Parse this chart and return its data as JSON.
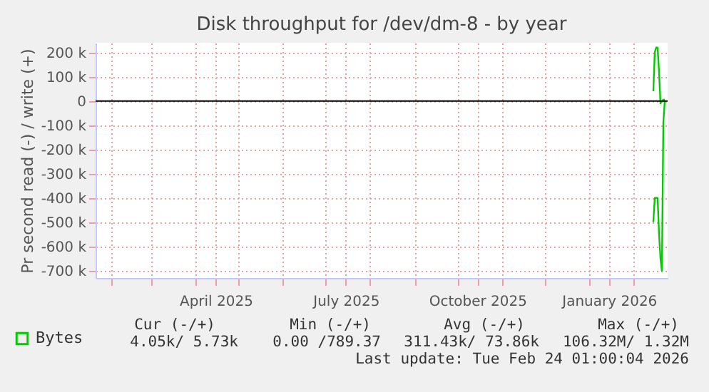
{
  "chart_data": {
    "type": "line",
    "title": "Disk throughput for /dev/dm-8 - by year",
    "ylabel": "Pr second read (-) / write (+)",
    "series": [
      {
        "name": "Bytes",
        "color": "#00cc00",
        "x": [
          "2026-02-15",
          "2026-02-16",
          "2026-02-17",
          "2026-02-18",
          "2026-02-19",
          "2026-02-20",
          "2026-02-21",
          "2026-02-22",
          "2026-02-23"
        ],
        "values": [
          40000,
          200000,
          220000,
          220000,
          120000,
          -10000,
          0,
          5000,
          5000
        ]
      },
      {
        "color": "#00cc00",
        "x": [
          "2026-02-15",
          "2026-02-16",
          "2026-02-17",
          "2026-02-18",
          "2026-02-19",
          "2026-02-20",
          "2026-02-21",
          "2026-02-22",
          "2026-02-23"
        ],
        "values": [
          -500000,
          -400000,
          -400000,
          -400000,
          -550000,
          -650000,
          -700000,
          -90000,
          0
        ]
      }
    ],
    "xlim": [
      "2025-01-21",
      "2026-02-25"
    ],
    "xticks": [
      {
        "value": "2025-02-01",
        "label": null
      },
      {
        "value": "2025-03-01",
        "label": null
      },
      {
        "value": "2025-04-01",
        "label": null
      },
      {
        "value": "2025-04-15",
        "label": "April 2025"
      },
      {
        "value": "2025-05-01",
        "label": null
      },
      {
        "value": "2025-06-01",
        "label": null
      },
      {
        "value": "2025-07-01",
        "label": null
      },
      {
        "value": "2025-07-15",
        "label": "July 2025"
      },
      {
        "value": "2025-08-01",
        "label": null
      },
      {
        "value": "2025-09-01",
        "label": null
      },
      {
        "value": "2025-10-01",
        "label": null
      },
      {
        "value": "2025-10-15",
        "label": "October 2025"
      },
      {
        "value": "2025-11-01",
        "label": null
      },
      {
        "value": "2025-12-01",
        "label": null
      },
      {
        "value": "2026-01-01",
        "label": null
      },
      {
        "value": "2026-01-15",
        "label": "January 2026"
      },
      {
        "value": "2026-02-01",
        "label": null
      }
    ],
    "ylim": [
      -730000,
      240000
    ],
    "yticks": [
      {
        "value": 200000,
        "label": "200 k"
      },
      {
        "value": 100000,
        "label": "100 k"
      },
      0,
      {
        "value": -100000,
        "label": "-100 k"
      },
      {
        "value": -200000,
        "label": "-200 k"
      },
      {
        "value": -300000,
        "label": "-300 k"
      },
      {
        "value": -400000,
        "label": "-400 k"
      },
      {
        "value": -500000,
        "label": "-500 k"
      },
      {
        "value": -600000,
        "label": "-600 k"
      },
      {
        "value": -700000,
        "label": "-700 k"
      }
    ],
    "ref_lines": [
      {
        "axis": "y",
        "value": 0,
        "color": "#000000"
      }
    ],
    "grid": true,
    "legend": "bottom left",
    "annotations": [
      "Cur (-/+)",
      "Min (-/+)",
      "Avg (-/+)",
      "Max (-/+)",
      "4.05k/  5.73k",
      "0.00 /789.37",
      "311.43k/ 73.86k",
      "106.32M/  1.32M",
      "Last update: Tue Feb 24 01:00:04 2026"
    ]
  }
}
